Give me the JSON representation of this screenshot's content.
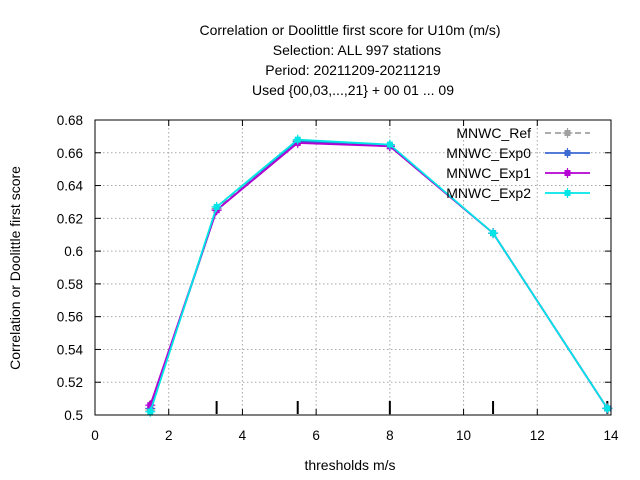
{
  "chart_data": {
    "type": "line",
    "title_lines": [
      "Correlation or Doolittle first score  for U10m (m/s)",
      "Selection: ALL    997 stations",
      "Period: 20211209-20211219",
      "Used {00,03,...,21} + 00 01 ... 09"
    ],
    "xlabel": "thresholds m/s",
    "ylabel": "Correlation or Doolittle first score",
    "xlim": [
      0,
      14
    ],
    "ylim": [
      0.5,
      0.68
    ],
    "x_ticks": [
      0,
      2,
      4,
      6,
      8,
      10,
      12,
      14
    ],
    "x_tick_labels": [
      "0",
      "2",
      "4",
      "6",
      "8",
      "10",
      "12",
      "14"
    ],
    "y_ticks": [
      0.5,
      0.52,
      0.54,
      0.56,
      0.58,
      0.6,
      0.62,
      0.64,
      0.66,
      0.68
    ],
    "y_tick_labels": [
      "0.5",
      "0.52",
      "0.54",
      "0.56",
      "0.58",
      "0.6",
      "0.62",
      "0.64",
      "0.66",
      "0.68"
    ],
    "grid": true,
    "legend_position": "top-right",
    "threshold_markers_x": [
      1.5,
      3.3,
      5.5,
      8.0,
      10.8,
      13.9
    ],
    "series": [
      {
        "name": "MNWC_Ref",
        "color": "#a0a0a0",
        "dash": true,
        "x": [
          1.5,
          3.3,
          5.5,
          8.0,
          10.8,
          13.9
        ],
        "y": [
          0.503,
          0.626,
          0.667,
          0.664,
          0.611,
          0.504
        ]
      },
      {
        "name": "MNWC_Exp0",
        "color": "#3c6ad2",
        "dash": false,
        "x": [
          1.5,
          3.3,
          5.5,
          8.0,
          10.8,
          13.9
        ],
        "y": [
          0.504,
          0.625,
          0.667,
          0.664,
          0.611,
          0.504
        ]
      },
      {
        "name": "MNWC_Exp1",
        "color": "#b400d2",
        "dash": false,
        "x": [
          1.5,
          3.3,
          5.5,
          8.0,
          10.8,
          13.9
        ],
        "y": [
          0.506,
          0.625,
          0.666,
          0.664,
          0.611,
          0.504
        ]
      },
      {
        "name": "MNWC_Exp2",
        "color": "#00e6e6",
        "dash": false,
        "x": [
          1.5,
          3.3,
          5.5,
          8.0,
          10.8,
          13.9
        ],
        "y": [
          0.502,
          0.627,
          0.668,
          0.665,
          0.611,
          0.504
        ]
      }
    ]
  }
}
